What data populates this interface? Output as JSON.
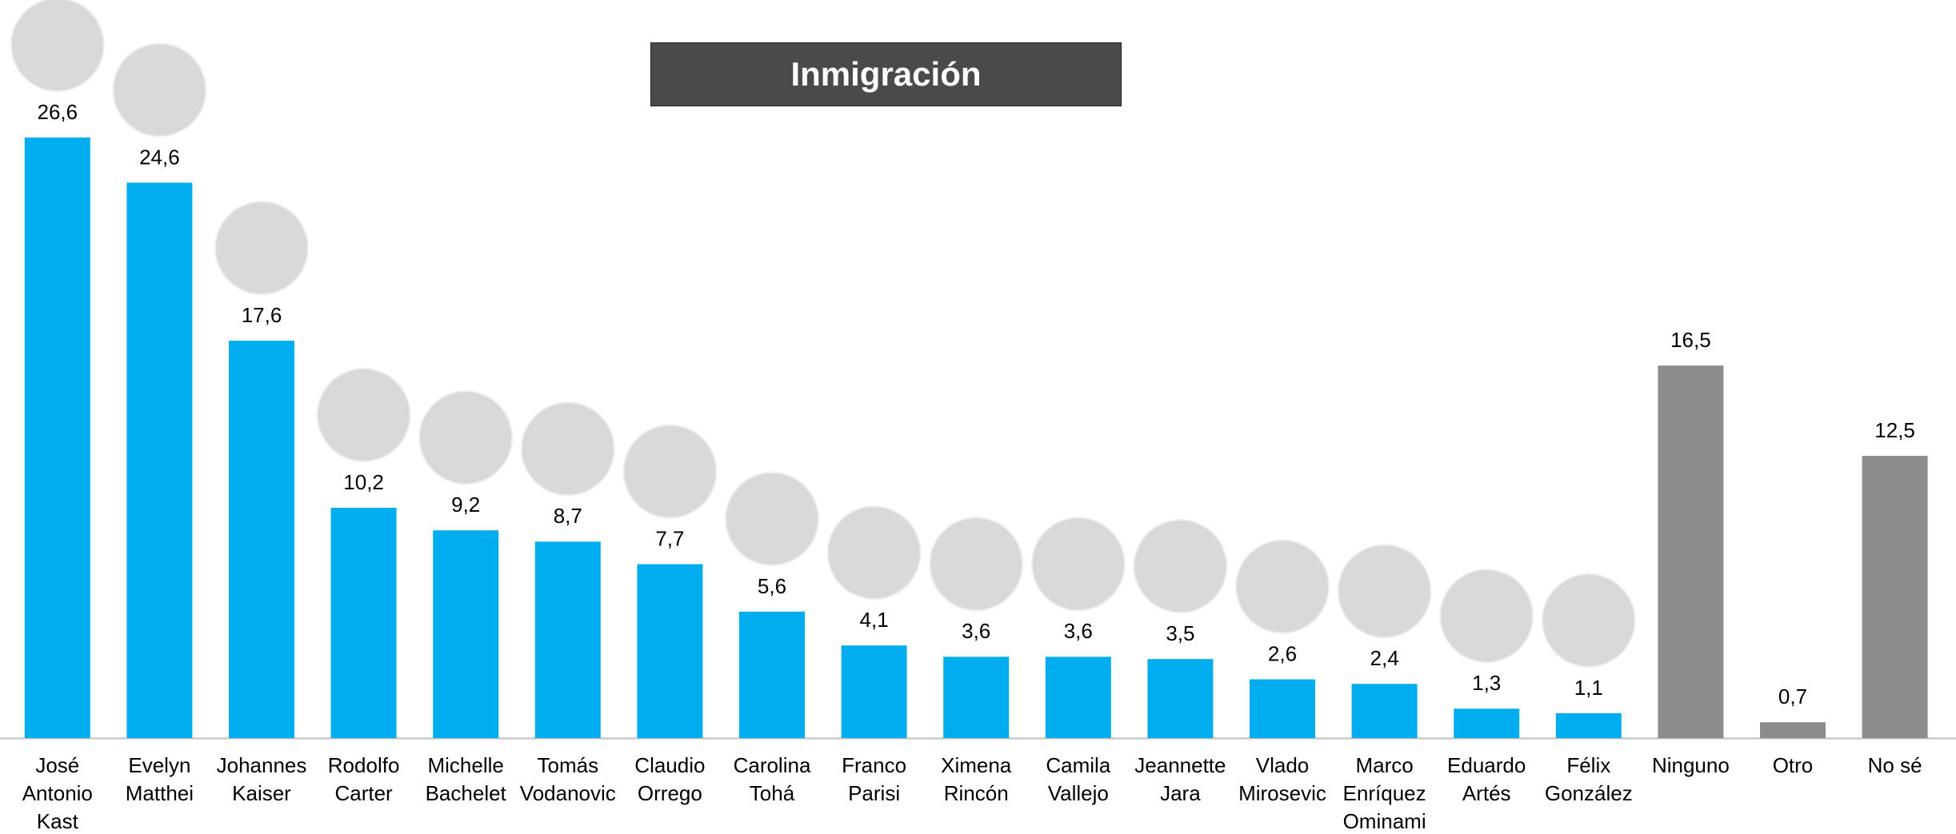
{
  "chart_data": {
    "type": "bar",
    "title": "Inmigración",
    "categories": [
      "José Antonio Kast",
      "Evelyn Matthei",
      "Johannes Kaiser",
      "Rodolfo Carter",
      "Michelle Bachelet",
      "Tomás Vodanovic",
      "Claudio Orrego",
      "Carolina Tohá",
      "Franco Parisi",
      "Ximena Rincón",
      "Camila Vallejo",
      "Jeannette Jara",
      "Vlado Mirosevic",
      "Marco Enríquez Ominami",
      "Eduardo Artés",
      "Félix González",
      "Ninguno",
      "Otro",
      "No sé"
    ],
    "values": [
      26.6,
      24.6,
      17.6,
      10.2,
      9.2,
      8.7,
      7.7,
      5.6,
      4.1,
      3.6,
      3.6,
      3.5,
      2.6,
      2.4,
      1.3,
      1.1,
      16.5,
      0.7,
      12.5
    ],
    "value_labels": [
      "26,6",
      "24,6",
      "17,6",
      "10,2",
      "9,2",
      "8,7",
      "7,7",
      "5,6",
      "4,1",
      "3,6",
      "3,6",
      "3,5",
      "2,6",
      "2,4",
      "1,3",
      "1,1",
      "16,5",
      "0,7",
      "12,5"
    ],
    "colors": [
      "#00aeef",
      "#00aeef",
      "#00aeef",
      "#00aeef",
      "#00aeef",
      "#00aeef",
      "#00aeef",
      "#00aeef",
      "#00aeef",
      "#00aeef",
      "#00aeef",
      "#00aeef",
      "#00aeef",
      "#00aeef",
      "#00aeef",
      "#00aeef",
      "#8c8c8c",
      "#8c8c8c",
      "#8c8c8c"
    ]
  }
}
